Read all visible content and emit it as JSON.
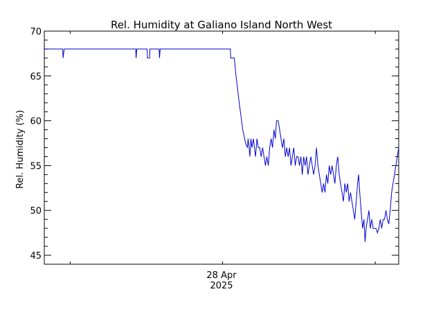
{
  "chart_data": {
    "type": "line",
    "title": "Rel. Humidity at Galiano Island North West",
    "ylabel": "Rel. Humidity (%)",
    "xlabel": "",
    "x_tick_label": {
      "line1": "28 Apr",
      "line2": "2025"
    },
    "y_ticks": [
      45,
      50,
      55,
      60,
      65,
      70
    ],
    "ylim": [
      44,
      70
    ],
    "x_domain": [
      0,
      100
    ],
    "grid": false,
    "series": [
      {
        "color": "#0000cc",
        "points": [
          [
            0,
            68
          ],
          [
            5.2,
            68
          ],
          [
            5.3,
            67
          ],
          [
            5.6,
            68
          ],
          [
            5.8,
            68
          ],
          [
            25.8,
            68
          ],
          [
            25.9,
            67
          ],
          [
            26.1,
            68
          ],
          [
            29,
            68
          ],
          [
            29.1,
            67
          ],
          [
            29.7,
            67
          ],
          [
            29.8,
            68
          ],
          [
            32.4,
            68
          ],
          [
            32.5,
            67
          ],
          [
            32.7,
            68
          ],
          [
            52.5,
            68
          ],
          [
            52.6,
            67
          ],
          [
            53.6,
            67
          ],
          [
            54.1,
            65
          ],
          [
            55,
            62
          ],
          [
            56,
            59
          ],
          [
            56.8,
            57.5
          ],
          [
            57.3,
            57
          ],
          [
            57.5,
            58
          ],
          [
            57.8,
            57
          ],
          [
            58,
            56
          ],
          [
            58.3,
            58
          ],
          [
            58.6,
            57
          ],
          [
            59,
            58
          ],
          [
            59.3,
            57
          ],
          [
            59.6,
            56
          ],
          [
            60,
            58
          ],
          [
            60.4,
            57
          ],
          [
            60.8,
            57
          ],
          [
            61.2,
            56
          ],
          [
            61.6,
            57
          ],
          [
            62,
            56
          ],
          [
            62.4,
            55
          ],
          [
            62.8,
            56
          ],
          [
            63.2,
            55
          ],
          [
            63.6,
            57
          ],
          [
            64,
            58
          ],
          [
            64.4,
            57
          ],
          [
            64.8,
            59
          ],
          [
            65.2,
            58
          ],
          [
            65.5,
            60
          ],
          [
            66,
            60
          ],
          [
            66.4,
            59
          ],
          [
            66.8,
            58
          ],
          [
            67.2,
            57
          ],
          [
            67.6,
            58
          ],
          [
            68,
            56
          ],
          [
            68.4,
            57
          ],
          [
            68.8,
            56
          ],
          [
            69.2,
            57
          ],
          [
            69.6,
            55
          ],
          [
            70,
            56
          ],
          [
            70.4,
            57
          ],
          [
            70.8,
            55
          ],
          [
            71.2,
            56
          ],
          [
            71.6,
            56
          ],
          [
            72,
            55
          ],
          [
            72.4,
            56
          ],
          [
            72.8,
            54
          ],
          [
            73.2,
            56
          ],
          [
            73.6,
            55
          ],
          [
            74,
            56
          ],
          [
            74.4,
            54
          ],
          [
            74.8,
            55
          ],
          [
            75.2,
            56
          ],
          [
            75.6,
            55
          ],
          [
            76,
            54
          ],
          [
            76.4,
            55
          ],
          [
            76.8,
            57
          ],
          [
            77.2,
            55
          ],
          [
            77.6,
            54
          ],
          [
            78,
            53
          ],
          [
            78.4,
            52
          ],
          [
            78.8,
            53
          ],
          [
            79.2,
            52
          ],
          [
            79.6,
            54
          ],
          [
            80,
            53
          ],
          [
            80.4,
            55
          ],
          [
            80.8,
            54
          ],
          [
            81.2,
            55
          ],
          [
            81.6,
            54
          ],
          [
            82,
            53
          ],
          [
            82.4,
            55
          ],
          [
            82.8,
            56
          ],
          [
            83.2,
            54
          ],
          [
            83.6,
            53
          ],
          [
            84,
            52
          ],
          [
            84.4,
            51
          ],
          [
            84.8,
            53
          ],
          [
            85.2,
            52
          ],
          [
            85.6,
            53
          ],
          [
            86,
            51
          ],
          [
            86.4,
            52
          ],
          [
            86.8,
            51
          ],
          [
            87.2,
            50
          ],
          [
            87.6,
            49
          ],
          [
            88,
            51
          ],
          [
            88.4,
            53
          ],
          [
            88.7,
            54
          ],
          [
            89,
            52
          ],
          [
            89.4,
            50
          ],
          [
            89.8,
            48
          ],
          [
            90.2,
            49
          ],
          [
            90.5,
            46.5
          ],
          [
            90.8,
            48
          ],
          [
            91.2,
            49
          ],
          [
            91.6,
            50
          ],
          [
            92,
            48
          ],
          [
            92.4,
            49
          ],
          [
            92.8,
            48
          ],
          [
            93.2,
            48
          ],
          [
            93.6,
            48
          ],
          [
            94,
            47.5
          ],
          [
            94.4,
            48
          ],
          [
            94.8,
            49
          ],
          [
            95.2,
            48
          ],
          [
            95.6,
            49
          ],
          [
            96,
            49
          ],
          [
            96.4,
            50
          ],
          [
            96.8,
            49
          ],
          [
            97.2,
            48.5
          ],
          [
            97.6,
            50
          ],
          [
            98,
            52
          ],
          [
            98.4,
            53
          ],
          [
            98.8,
            54
          ],
          [
            99.2,
            55
          ],
          [
            99.6,
            56
          ],
          [
            100,
            57
          ]
        ]
      }
    ]
  }
}
